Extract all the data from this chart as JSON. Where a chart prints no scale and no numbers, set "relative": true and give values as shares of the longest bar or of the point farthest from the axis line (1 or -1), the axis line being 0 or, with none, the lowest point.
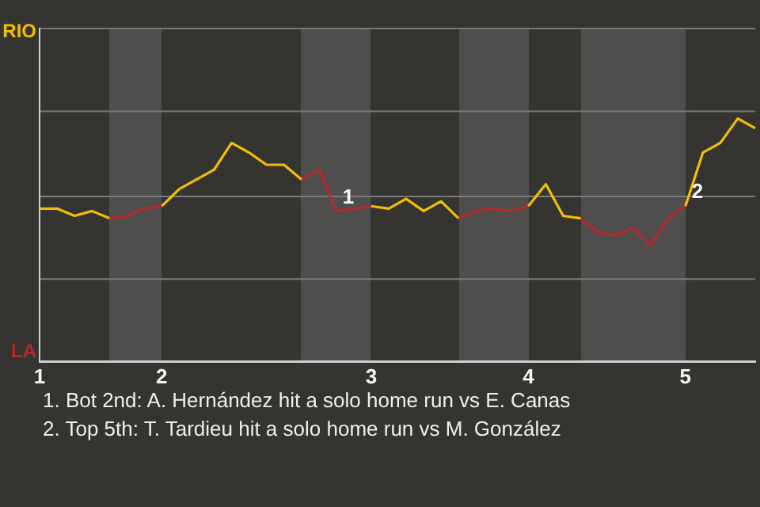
{
  "chart_data": {
    "type": "line",
    "relative": true,
    "categories": [
      "1",
      null,
      null,
      null,
      null,
      null,
      null,
      "2",
      null,
      null,
      null,
      null,
      null,
      null,
      null,
      null,
      null,
      null,
      null,
      "3",
      null,
      null,
      null,
      null,
      null,
      null,
      null,
      null,
      "4",
      null,
      null,
      null,
      null,
      null,
      null,
      null,
      null,
      "5",
      null,
      null,
      null,
      null
    ],
    "series": [
      {
        "color": "#f0c000",
        "values": [
          0.63,
          0.63,
          0.6,
          0.62,
          0.59,
          null,
          null,
          0.64,
          0.71,
          0.75,
          0.79,
          0.9,
          0.86,
          0.81,
          0.81,
          0.75,
          null,
          null,
          null,
          0.64,
          0.63,
          0.67,
          0.62,
          0.66,
          0.59,
          null,
          null,
          null,
          0.64,
          0.73,
          0.6,
          0.59,
          null,
          null,
          null,
          null,
          null,
          0.64,
          0.86,
          0.9,
          1,
          0.96
        ]
      },
      {
        "color": "#b42a2a",
        "values": [
          null,
          null,
          null,
          null,
          0.59,
          0.6,
          0.63,
          0.64,
          null,
          null,
          null,
          null,
          null,
          null,
          null,
          0.75,
          0.79,
          0.62,
          0.63,
          0.64,
          null,
          null,
          null,
          null,
          0.59,
          0.62,
          0.63,
          0.62,
          0.64,
          null,
          null,
          0.59,
          0.53,
          0.52,
          0.55,
          0.48,
          0.59,
          0.64,
          null,
          null,
          null,
          null
        ]
      }
    ],
    "legend": false,
    "marker": "none",
    "line_style": "solid",
    "ref_lines": [
      {
        "axis": "y",
        "value": 0.34,
        "color": "#7a7a7a"
      },
      {
        "axis": "y",
        "value": 0.68,
        "color": "#7a7a7a"
      },
      {
        "axis": "y",
        "value": 1.03,
        "color": "#7a7a7a"
      },
      {
        "axis": "y",
        "value": 1.37,
        "color": "#7a7a7a"
      }
    ],
    "annotations": [
      "RIO",
      "LA",
      {
        "text": "1",
        "y": 0.62
      },
      {
        "text": "2",
        "x": "5",
        "y": 0.64
      },
      "1. Bot 2nd: A. Hernández hit a solo home run vs E. Canas",
      "2. Top 5th: T. Tardieu hit a solo home run vs M. González"
    ]
  }
}
